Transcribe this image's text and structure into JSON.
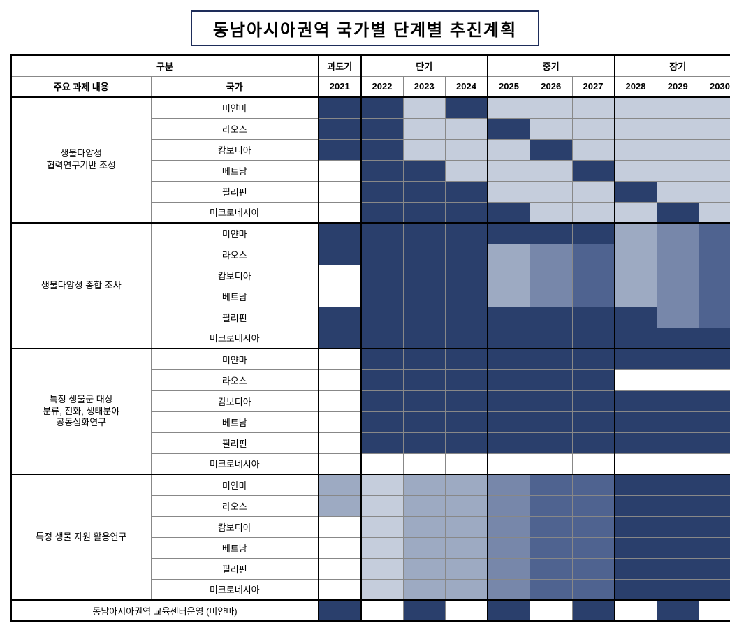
{
  "title": "동남아시아권역 국가별 단계별 추진계획",
  "header": {
    "category": "구분",
    "transition": "과도기",
    "short": "단기",
    "mid": "중기",
    "long": "장기",
    "taskHeader": "주요 과제 내용",
    "countryHeader": "국가",
    "years": [
      "2021",
      "2022",
      "2023",
      "2024",
      "2025",
      "2026",
      "2027",
      "2028",
      "2029",
      "2030"
    ]
  },
  "colors": {
    "dark": "#2a3f6c",
    "med1": "#4f6390",
    "med2": "#7787aa",
    "light1": "#9daac2",
    "light2": "#c5cddc",
    "light3": "#dfe3ec",
    "bg": "#ffffff",
    "border": "#888888",
    "heavy": "#000000"
  },
  "tasks": [
    {
      "label": "생물다양성\n협력연구기반 조성",
      "countries": [
        {
          "name": "미얀마",
          "cells": [
            "dark",
            "dark",
            "light2",
            "dark",
            "light2",
            "light2",
            "light2",
            "light2",
            "light2",
            "light2"
          ]
        },
        {
          "name": "라오스",
          "cells": [
            "dark",
            "dark",
            "light2",
            "light2",
            "dark",
            "light2",
            "light2",
            "light2",
            "light2",
            "light2"
          ]
        },
        {
          "name": "캄보디아",
          "cells": [
            "dark",
            "dark",
            "light2",
            "light2",
            "light2",
            "dark",
            "light2",
            "light2",
            "light2",
            "light2"
          ]
        },
        {
          "name": "베트남",
          "cells": [
            "",
            "dark",
            "dark",
            "light2",
            "light2",
            "light2",
            "dark",
            "light2",
            "light2",
            "light2"
          ]
        },
        {
          "name": "필리핀",
          "cells": [
            "",
            "dark",
            "dark",
            "dark",
            "light2",
            "light2",
            "light2",
            "dark",
            "light2",
            "light2"
          ]
        },
        {
          "name": "미크로네시아",
          "cells": [
            "",
            "dark",
            "dark",
            "dark",
            "dark",
            "light2",
            "light2",
            "light2",
            "dark",
            "light2"
          ]
        }
      ]
    },
    {
      "label": "생물다양성 종합 조사",
      "countries": [
        {
          "name": "미얀마",
          "cells": [
            "dark",
            "dark",
            "dark",
            "dark",
            "dark",
            "dark",
            "dark",
            "light1",
            "med2",
            "med1"
          ]
        },
        {
          "name": "라오스",
          "cells": [
            "dark",
            "dark",
            "dark",
            "dark",
            "light1",
            "med2",
            "med1",
            "light1",
            "med2",
            "med1"
          ]
        },
        {
          "name": "캄보디아",
          "cells": [
            "",
            "dark",
            "dark",
            "dark",
            "light1",
            "med2",
            "med1",
            "light1",
            "med2",
            "med1"
          ]
        },
        {
          "name": "베트남",
          "cells": [
            "",
            "dark",
            "dark",
            "dark",
            "light1",
            "med2",
            "med1",
            "light1",
            "med2",
            "med1"
          ]
        },
        {
          "name": "필리핀",
          "cells": [
            "dark",
            "dark",
            "dark",
            "dark",
            "dark",
            "dark",
            "dark",
            "dark",
            "med2",
            "med1"
          ]
        },
        {
          "name": "미크로네시아",
          "cells": [
            "dark",
            "dark",
            "dark",
            "dark",
            "dark",
            "dark",
            "dark",
            "dark",
            "dark",
            "dark"
          ]
        }
      ]
    },
    {
      "label": "특정 생물군 대상\n분류, 진화, 생태분야\n공동심화연구",
      "countries": [
        {
          "name": "미얀마",
          "cells": [
            "",
            "dark",
            "dark",
            "dark",
            "dark",
            "dark",
            "dark",
            "dark",
            "dark",
            "dark"
          ]
        },
        {
          "name": "라오스",
          "cells": [
            "",
            "dark",
            "dark",
            "dark",
            "dark",
            "dark",
            "dark",
            "",
            "",
            ""
          ]
        },
        {
          "name": "캄보디아",
          "cells": [
            "",
            "dark",
            "dark",
            "dark",
            "dark",
            "dark",
            "dark",
            "dark",
            "dark",
            "dark"
          ]
        },
        {
          "name": "베트남",
          "cells": [
            "",
            "dark",
            "dark",
            "dark",
            "dark",
            "dark",
            "dark",
            "dark",
            "dark",
            "dark"
          ]
        },
        {
          "name": "필리핀",
          "cells": [
            "",
            "dark",
            "dark",
            "dark",
            "dark",
            "dark",
            "dark",
            "dark",
            "dark",
            "dark"
          ]
        },
        {
          "name": "미크로네시아",
          "cells": [
            "",
            "",
            "",
            "",
            "",
            "",
            "",
            "",
            "",
            ""
          ]
        }
      ]
    },
    {
      "label": "특정 생물 자원 활용연구",
      "countries": [
        {
          "name": "미얀마",
          "cells": [
            "light1",
            "light2",
            "light1",
            "light1",
            "med2",
            "med1",
            "med1",
            "dark",
            "dark",
            "dark"
          ]
        },
        {
          "name": "라오스",
          "cells": [
            "light1",
            "light2",
            "light1",
            "light1",
            "med2",
            "med1",
            "med1",
            "dark",
            "dark",
            "dark"
          ]
        },
        {
          "name": "캄보디아",
          "cells": [
            "",
            "light2",
            "light1",
            "light1",
            "med2",
            "med1",
            "med1",
            "dark",
            "dark",
            "dark"
          ]
        },
        {
          "name": "베트남",
          "cells": [
            "",
            "light2",
            "light1",
            "light1",
            "med2",
            "med1",
            "med1",
            "dark",
            "dark",
            "dark"
          ]
        },
        {
          "name": "필리핀",
          "cells": [
            "",
            "light2",
            "light1",
            "light1",
            "med2",
            "med1",
            "med1",
            "dark",
            "dark",
            "dark"
          ]
        },
        {
          "name": "미크로네시아",
          "cells": [
            "",
            "light2",
            "light1",
            "light1",
            "med2",
            "med1",
            "med1",
            "dark",
            "dark",
            "dark"
          ]
        }
      ]
    }
  ],
  "footer": {
    "label": "동남아시아권역 교육센터운영 (미얀마)",
    "cells": [
      "dark",
      "",
      "dark",
      "",
      "dark",
      "",
      "dark",
      "",
      "dark",
      ""
    ]
  }
}
